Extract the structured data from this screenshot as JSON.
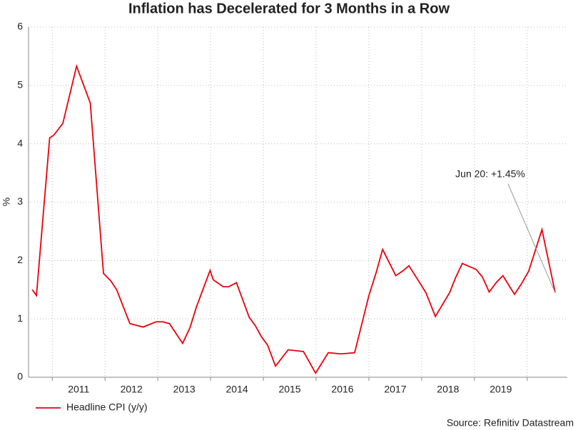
{
  "chart_data": {
    "type": "line",
    "title": "Inflation has Decelerated for 3 Months in a Row",
    "y_label": "%",
    "source": "Source: Refinitiv Datastream",
    "annotation": "Jun 20: +1.45%",
    "xlim": [
      2010.55,
      2020.76
    ],
    "xticks": [
      2011,
      2012,
      2013,
      2014,
      2015,
      2016,
      2017,
      2018,
      2019
    ],
    "xgrid": [
      2011,
      2012,
      2013,
      2014,
      2015,
      2016,
      2017,
      2018,
      2019,
      2020
    ],
    "ylim": [
      0,
      6
    ],
    "yticks": [
      0,
      1,
      2,
      3,
      4,
      5,
      6
    ],
    "grid": true,
    "legend": "bottom-left",
    "x": [
      2010.62,
      2010.7,
      2010.95,
      2011.03,
      2011.2,
      2011.46,
      2011.72,
      2011.97,
      2012.11,
      2012.22,
      2012.47,
      2012.72,
      2012.97,
      2013.09,
      2013.22,
      2013.47,
      2013.61,
      2013.73,
      2013.99,
      2014.05,
      2014.24,
      2014.34,
      2014.49,
      2014.73,
      2014.85,
      2014.96,
      2015.08,
      2015.23,
      2015.47,
      2015.76,
      2015.99,
      2016.23,
      2016.47,
      2016.73,
      2016.89,
      2017.0,
      2017.14,
      2017.26,
      2017.51,
      2017.64,
      2017.76,
      2017.99,
      2018.08,
      2018.26,
      2018.53,
      2018.64,
      2018.77,
      2018.95,
      2019.03,
      2019.15,
      2019.28,
      2019.42,
      2019.54,
      2019.76,
      2019.89,
      2020.03,
      2020.28,
      2020.53
    ],
    "series": [
      {
        "name": "Headline CPI (y/y)",
        "color": "#e8000b",
        "values": [
          1.5,
          1.4,
          4.1,
          4.15,
          4.35,
          5.33,
          4.7,
          1.78,
          1.65,
          1.5,
          0.92,
          0.86,
          0.95,
          0.95,
          0.92,
          0.58,
          0.85,
          1.2,
          1.83,
          1.67,
          1.55,
          1.55,
          1.62,
          1.03,
          0.88,
          0.7,
          0.55,
          0.19,
          0.47,
          0.44,
          0.07,
          0.42,
          0.4,
          0.42,
          1.0,
          1.4,
          1.8,
          2.19,
          1.74,
          1.82,
          1.91,
          1.58,
          1.45,
          1.04,
          1.45,
          1.7,
          1.95,
          1.88,
          1.85,
          1.72,
          1.46,
          1.63,
          1.74,
          1.42,
          1.6,
          1.82,
          2.53,
          1.45
        ]
      }
    ]
  }
}
